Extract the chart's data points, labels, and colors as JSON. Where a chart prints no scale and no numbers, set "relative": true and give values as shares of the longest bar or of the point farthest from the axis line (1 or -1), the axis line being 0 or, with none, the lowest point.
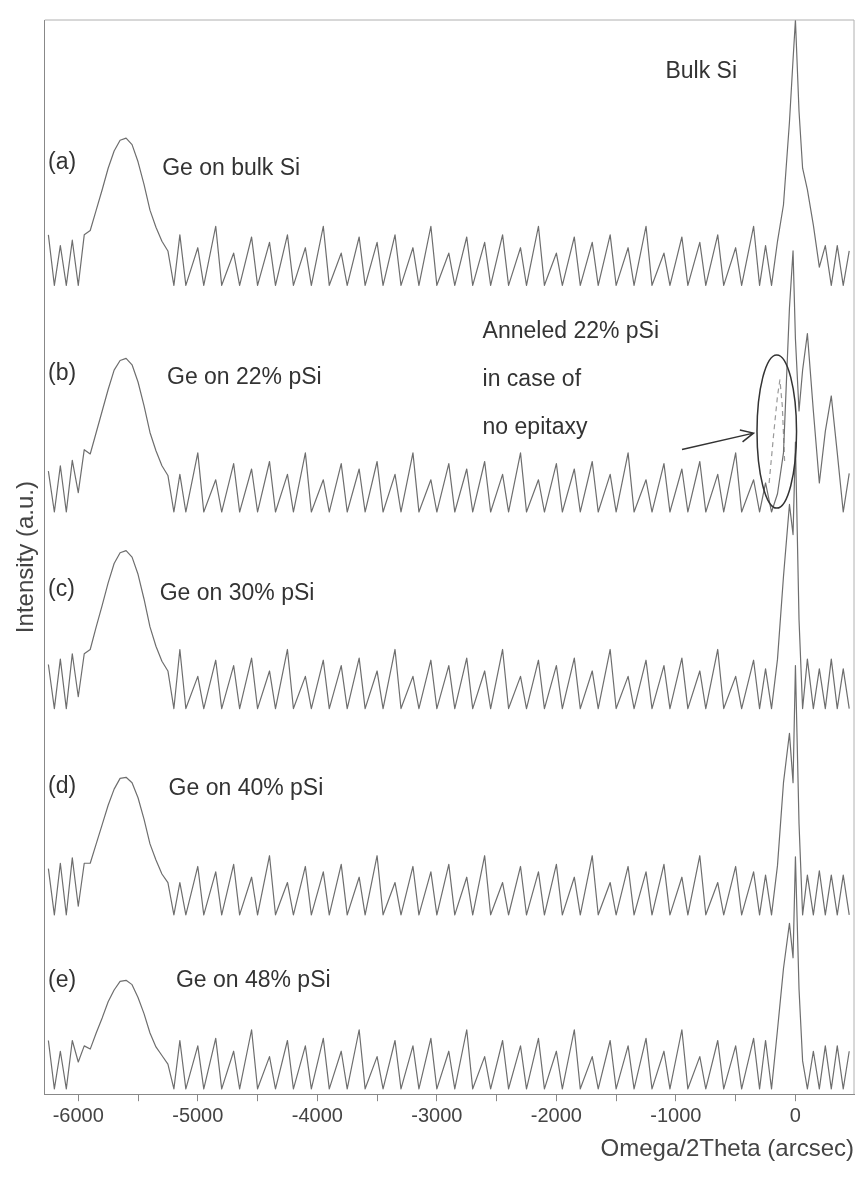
{
  "chart_data": {
    "type": "line",
    "relative": true,
    "marker": "none",
    "xlabel": "Omega/2Theta (arcsec)",
    "ylabel": "Intensity (a.u.)",
    "xlim": [
      -6280,
      490
    ],
    "xticks": [
      -6000,
      {
        "value": -5500,
        "label": null
      },
      -5000,
      {
        "value": -4500,
        "label": null
      },
      -4000,
      {
        "value": -3500,
        "label": null
      },
      -3000,
      {
        "value": -2500,
        "label": null
      },
      -2000,
      {
        "value": -1500,
        "label": null
      },
      -1000,
      {
        "value": -500,
        "label": null
      },
      0
    ],
    "x": [
      -6250,
      -6200,
      -6150,
      -6100,
      -6050,
      -6000,
      -5950,
      -5900,
      -5850,
      -5800,
      -5750,
      -5700,
      -5650,
      -5600,
      -5550,
      -5500,
      -5450,
      -5400,
      -5350,
      -5300,
      -5250,
      -5200,
      -5150,
      -5100,
      -5000,
      -4950,
      -4850,
      -4800,
      -4700,
      -4650,
      -4550,
      -4500,
      -4400,
      -4350,
      -4250,
      -4200,
      -4100,
      -4050,
      -3950,
      -3900,
      -3800,
      -3750,
      -3650,
      -3600,
      -3500,
      -3450,
      -3350,
      -3300,
      -3200,
      -3150,
      -3050,
      -3000,
      -2900,
      -2850,
      -2750,
      -2700,
      -2600,
      -2550,
      -2450,
      -2400,
      -2300,
      -2250,
      -2150,
      -2100,
      -2000,
      -1950,
      -1850,
      -1800,
      -1700,
      -1650,
      -1550,
      -1500,
      -1400,
      -1350,
      -1250,
      -1200,
      -1100,
      -1050,
      -950,
      -900,
      -800,
      -750,
      -650,
      -600,
      -500,
      -450,
      -350,
      -300,
      -250,
      -200,
      -150,
      -100,
      -50,
      -20,
      0,
      30,
      60,
      100,
      150,
      200,
      250,
      300,
      350,
      400,
      450
    ],
    "series": [
      {
        "color": "#6e6e6e",
        "values": [
          0.8,
          0.753,
          0.79,
          0.753,
          0.795,
          0.753,
          0.8,
          0.804,
          0.823,
          0.842,
          0.862,
          0.878,
          0.888,
          0.89,
          0.884,
          0.868,
          0.847,
          0.823,
          0.807,
          0.794,
          0.785,
          0.753,
          0.8,
          0.753,
          0.788,
          0.753,
          0.808,
          0.753,
          0.783,
          0.753,
          0.798,
          0.753,
          0.793,
          0.753,
          0.8,
          0.753,
          0.788,
          0.753,
          0.808,
          0.753,
          0.783,
          0.753,
          0.798,
          0.753,
          0.793,
          0.753,
          0.8,
          0.753,
          0.788,
          0.753,
          0.808,
          0.753,
          0.783,
          0.753,
          0.798,
          0.753,
          0.793,
          0.753,
          0.8,
          0.753,
          0.788,
          0.753,
          0.808,
          0.753,
          0.783,
          0.753,
          0.798,
          0.753,
          0.793,
          0.753,
          0.8,
          0.753,
          0.788,
          0.753,
          0.808,
          0.753,
          0.783,
          0.753,
          0.798,
          0.753,
          0.793,
          0.753,
          0.8,
          0.753,
          0.788,
          0.753,
          0.808,
          0.753,
          0.79,
          0.753,
          0.794,
          0.828,
          0.905,
          0.963,
          1.0,
          0.915,
          0.862,
          0.842,
          0.809,
          0.77,
          0.79,
          0.753,
          0.79,
          0.753,
          0.785
        ]
      },
      {
        "color": "#6e6e6e",
        "values": [
          0.58,
          0.542,
          0.585,
          0.542,
          0.59,
          0.56,
          0.6,
          0.596,
          0.616,
          0.636,
          0.656,
          0.674,
          0.683,
          0.685,
          0.679,
          0.663,
          0.641,
          0.616,
          0.599,
          0.585,
          0.576,
          0.542,
          0.577,
          0.542,
          0.597,
          0.542,
          0.572,
          0.542,
          0.587,
          0.542,
          0.582,
          0.542,
          0.589,
          0.542,
          0.577,
          0.542,
          0.597,
          0.542,
          0.572,
          0.542,
          0.587,
          0.542,
          0.582,
          0.542,
          0.589,
          0.542,
          0.577,
          0.542,
          0.597,
          0.542,
          0.572,
          0.542,
          0.587,
          0.542,
          0.582,
          0.542,
          0.589,
          0.542,
          0.577,
          0.542,
          0.597,
          0.542,
          0.572,
          0.542,
          0.587,
          0.542,
          0.582,
          0.542,
          0.589,
          0.542,
          0.577,
          0.542,
          0.597,
          0.542,
          0.572,
          0.542,
          0.587,
          0.542,
          0.582,
          0.542,
          0.589,
          0.542,
          0.577,
          0.542,
          0.597,
          0.542,
          0.572,
          0.542,
          0.569,
          0.542,
          0.559,
          0.597,
          0.732,
          0.785,
          0.703,
          0.636,
          0.674,
          0.708,
          0.636,
          0.569,
          0.617,
          0.65,
          0.597,
          0.542,
          0.578
        ]
      },
      {
        "color": "#6e6e6e",
        "values": [
          0.4,
          0.359,
          0.405,
          0.359,
          0.41,
          0.37,
          0.41,
          0.414,
          0.435,
          0.455,
          0.476,
          0.494,
          0.504,
          0.506,
          0.5,
          0.484,
          0.461,
          0.435,
          0.417,
          0.403,
          0.394,
          0.359,
          0.414,
          0.359,
          0.389,
          0.359,
          0.404,
          0.359,
          0.399,
          0.359,
          0.406,
          0.359,
          0.394,
          0.359,
          0.414,
          0.359,
          0.389,
          0.359,
          0.404,
          0.359,
          0.399,
          0.359,
          0.406,
          0.359,
          0.394,
          0.359,
          0.414,
          0.359,
          0.389,
          0.359,
          0.404,
          0.359,
          0.399,
          0.359,
          0.406,
          0.359,
          0.394,
          0.359,
          0.414,
          0.359,
          0.389,
          0.359,
          0.404,
          0.359,
          0.399,
          0.359,
          0.406,
          0.359,
          0.394,
          0.359,
          0.414,
          0.359,
          0.389,
          0.359,
          0.404,
          0.359,
          0.399,
          0.359,
          0.406,
          0.359,
          0.394,
          0.359,
          0.414,
          0.359,
          0.389,
          0.359,
          0.404,
          0.359,
          0.396,
          0.359,
          0.405,
          0.482,
          0.549,
          0.521,
          0.607,
          0.442,
          0.359,
          0.405,
          0.359,
          0.396,
          0.359,
          0.405,
          0.359,
          0.396,
          0.359
        ]
      },
      {
        "color": "#6e6e6e",
        "values": [
          0.21,
          0.167,
          0.215,
          0.167,
          0.22,
          0.175,
          0.215,
          0.215,
          0.233,
          0.251,
          0.269,
          0.284,
          0.294,
          0.295,
          0.29,
          0.276,
          0.256,
          0.233,
          0.218,
          0.205,
          0.197,
          0.167,
          0.197,
          0.167,
          0.212,
          0.167,
          0.207,
          0.167,
          0.214,
          0.167,
          0.202,
          0.167,
          0.222,
          0.167,
          0.197,
          0.167,
          0.212,
          0.167,
          0.207,
          0.167,
          0.214,
          0.167,
          0.202,
          0.167,
          0.222,
          0.167,
          0.197,
          0.167,
          0.212,
          0.167,
          0.207,
          0.167,
          0.214,
          0.167,
          0.202,
          0.167,
          0.222,
          0.167,
          0.197,
          0.167,
          0.212,
          0.167,
          0.207,
          0.167,
          0.214,
          0.167,
          0.202,
          0.167,
          0.222,
          0.167,
          0.197,
          0.167,
          0.212,
          0.167,
          0.207,
          0.167,
          0.214,
          0.167,
          0.202,
          0.167,
          0.222,
          0.167,
          0.197,
          0.167,
          0.212,
          0.167,
          0.207,
          0.167,
          0.204,
          0.167,
          0.213,
          0.29,
          0.336,
          0.29,
          0.399,
          0.252,
          0.167,
          0.204,
          0.167,
          0.208,
          0.167,
          0.204,
          0.167,
          0.204,
          0.167
        ]
      },
      {
        "color": "#6e6e6e",
        "values": [
          0.05,
          0.005,
          0.04,
          0.005,
          0.05,
          0.03,
          0.045,
          0.042,
          0.057,
          0.071,
          0.086,
          0.097,
          0.105,
          0.106,
          0.102,
          0.09,
          0.075,
          0.057,
          0.044,
          0.036,
          0.028,
          0.005,
          0.05,
          0.005,
          0.045,
          0.005,
          0.052,
          0.005,
          0.04,
          0.005,
          0.06,
          0.005,
          0.035,
          0.005,
          0.05,
          0.005,
          0.045,
          0.005,
          0.052,
          0.005,
          0.04,
          0.005,
          0.06,
          0.005,
          0.035,
          0.005,
          0.05,
          0.005,
          0.045,
          0.005,
          0.052,
          0.005,
          0.04,
          0.005,
          0.06,
          0.005,
          0.035,
          0.005,
          0.05,
          0.005,
          0.045,
          0.005,
          0.052,
          0.005,
          0.04,
          0.005,
          0.06,
          0.005,
          0.035,
          0.005,
          0.05,
          0.005,
          0.045,
          0.005,
          0.052,
          0.005,
          0.04,
          0.005,
          0.06,
          0.005,
          0.035,
          0.005,
          0.05,
          0.005,
          0.045,
          0.005,
          0.052,
          0.005,
          0.05,
          0.005,
          0.06,
          0.117,
          0.159,
          0.127,
          0.221,
          0.098,
          0.031,
          0.005,
          0.04,
          0.005,
          0.045,
          0.005,
          0.045,
          0.005,
          0.04
        ]
      },
      {
        "color": "#9a9a9a",
        "line_style": "dashed",
        "x": [
          -220,
          -180,
          -150,
          -130,
          -110,
          -90
        ],
        "values": [
          0.569,
          0.617,
          0.65,
          0.665,
          0.641,
          0.588
        ]
      }
    ],
    "annotations": [
      "(a)",
      "Ge on bulk Si",
      "Bulk Si",
      "(b)",
      "Ge on 22% pSi",
      "Anneled 22% pSi\nin case of\nno epitaxy",
      "(c)",
      "Ge on 30% pSi",
      "(d)",
      "Ge on 40% pSi",
      "(e)",
      "Ge on 48% pSi"
    ]
  }
}
